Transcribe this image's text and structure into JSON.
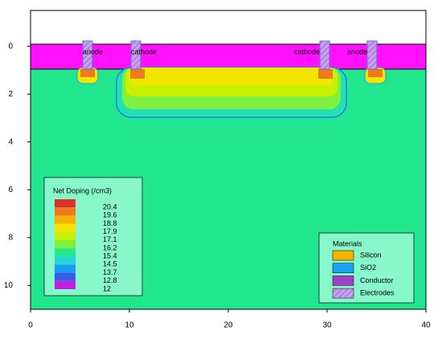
{
  "chart_data": {
    "type": "device",
    "xlim": [
      0,
      40
    ],
    "ylim": [
      -1.5,
      11
    ],
    "xticks": [
      0,
      10,
      20,
      30,
      40
    ],
    "yticks": [
      0,
      2,
      4,
      6,
      8,
      10
    ],
    "electrodes": [
      "anode",
      "cathode",
      "cathode",
      "anode"
    ],
    "doping_legend": {
      "title": "Net Doping (/cm3)",
      "levels": [
        20.4,
        19.6,
        18.8,
        17.9,
        17.1,
        16.2,
        15.4,
        14.5,
        13.7,
        12.8,
        12
      ],
      "colors": [
        "#d9342b",
        "#f07a1e",
        "#f5b000",
        "#f2e600",
        "#c8f000",
        "#7ff03a",
        "#27e88c",
        "#22d6d6",
        "#1a9cf0",
        "#3a5ae8",
        "#c020e0"
      ]
    },
    "materials_legend": {
      "title": "Materials",
      "items": [
        {
          "name": "Silicon",
          "color": "#f2b200"
        },
        {
          "name": "SiO2",
          "color": "#1aa3f0"
        },
        {
          "name": "Conductor",
          "color": "#a040c8"
        },
        {
          "name": "Electrodes",
          "color": "#7ff0d8"
        }
      ]
    }
  }
}
